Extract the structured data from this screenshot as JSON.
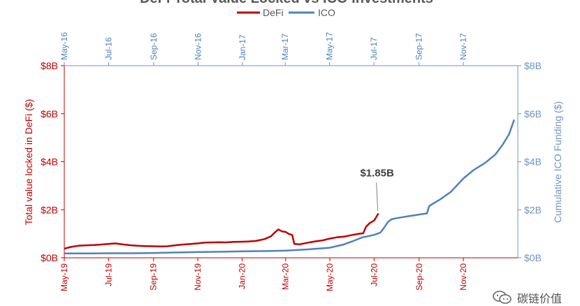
{
  "chart_data": {
    "type": "line",
    "title": "DeFi Total Value Locked vs ICO Investments",
    "legend_position": "top",
    "series": [
      {
        "name": "DeFi",
        "color": "#c00000",
        "axis": "left",
        "points": [
          [
            "2019-05-01",
            0.38
          ],
          [
            "2019-05-10",
            0.45
          ],
          [
            "2019-05-20",
            0.5
          ],
          [
            "2019-06-01",
            0.52
          ],
          [
            "2019-06-10",
            0.53
          ],
          [
            "2019-06-20",
            0.55
          ],
          [
            "2019-07-01",
            0.58
          ],
          [
            "2019-07-10",
            0.6
          ],
          [
            "2019-07-20",
            0.56
          ],
          [
            "2019-08-01",
            0.52
          ],
          [
            "2019-08-10",
            0.5
          ],
          [
            "2019-08-20",
            0.49
          ],
          [
            "2019-09-01",
            0.48
          ],
          [
            "2019-09-10",
            0.47
          ],
          [
            "2019-09-20",
            0.48
          ],
          [
            "2019-10-01",
            0.52
          ],
          [
            "2019-10-10",
            0.55
          ],
          [
            "2019-10-20",
            0.57
          ],
          [
            "2019-11-01",
            0.6
          ],
          [
            "2019-11-10",
            0.63
          ],
          [
            "2019-11-20",
            0.64
          ],
          [
            "2019-12-01",
            0.65
          ],
          [
            "2019-12-10",
            0.64
          ],
          [
            "2019-12-20",
            0.66
          ],
          [
            "2020-01-01",
            0.67
          ],
          [
            "2020-01-10",
            0.68
          ],
          [
            "2020-01-20",
            0.7
          ],
          [
            "2020-02-01",
            0.78
          ],
          [
            "2020-02-10",
            0.9
          ],
          [
            "2020-02-15",
            1.05
          ],
          [
            "2020-02-20",
            1.18
          ],
          [
            "2020-02-25",
            1.1
          ],
          [
            "2020-03-01",
            1.08
          ],
          [
            "2020-03-05",
            1.0
          ],
          [
            "2020-03-10",
            0.95
          ],
          [
            "2020-03-13",
            0.58
          ],
          [
            "2020-03-20",
            0.56
          ],
          [
            "2020-04-01",
            0.63
          ],
          [
            "2020-04-10",
            0.68
          ],
          [
            "2020-04-20",
            0.72
          ],
          [
            "2020-05-01",
            0.8
          ],
          [
            "2020-05-10",
            0.85
          ],
          [
            "2020-05-20",
            0.88
          ],
          [
            "2020-06-01",
            0.95
          ],
          [
            "2020-06-10",
            1.0
          ],
          [
            "2020-06-16",
            1.02
          ],
          [
            "2020-06-20",
            1.3
          ],
          [
            "2020-06-25",
            1.45
          ],
          [
            "2020-07-01",
            1.55
          ],
          [
            "2020-07-04",
            1.7
          ],
          [
            "2020-07-07",
            1.85
          ]
        ]
      },
      {
        "name": "ICO",
        "color": "#4f81bd",
        "axis": "right",
        "points": [
          [
            "2016-05-01",
            0.18
          ],
          [
            "2016-06-01",
            0.18
          ],
          [
            "2016-07-01",
            0.19
          ],
          [
            "2016-08-01",
            0.19
          ],
          [
            "2016-09-01",
            0.2
          ],
          [
            "2016-10-01",
            0.22
          ],
          [
            "2016-11-01",
            0.24
          ],
          [
            "2016-12-01",
            0.25
          ],
          [
            "2017-01-01",
            0.27
          ],
          [
            "2017-02-01",
            0.28
          ],
          [
            "2017-03-01",
            0.3
          ],
          [
            "2017-04-01",
            0.35
          ],
          [
            "2017-05-01",
            0.42
          ],
          [
            "2017-05-20",
            0.55
          ],
          [
            "2017-06-01",
            0.68
          ],
          [
            "2017-06-15",
            0.85
          ],
          [
            "2017-07-01",
            0.95
          ],
          [
            "2017-07-10",
            1.05
          ],
          [
            "2017-07-15",
            1.25
          ],
          [
            "2017-07-20",
            1.48
          ],
          [
            "2017-07-25",
            1.6
          ],
          [
            "2017-08-01",
            1.65
          ],
          [
            "2017-08-15",
            1.72
          ],
          [
            "2017-09-01",
            1.8
          ],
          [
            "2017-09-12",
            1.85
          ],
          [
            "2017-09-15",
            2.15
          ],
          [
            "2017-09-20",
            2.25
          ],
          [
            "2017-10-01",
            2.45
          ],
          [
            "2017-10-15",
            2.75
          ],
          [
            "2017-11-01",
            3.3
          ],
          [
            "2017-11-15",
            3.65
          ],
          [
            "2017-12-01",
            3.95
          ],
          [
            "2017-12-15",
            4.3
          ],
          [
            "2017-12-25",
            4.7
          ],
          [
            "2018-01-03",
            5.15
          ],
          [
            "2018-01-10",
            5.75
          ]
        ]
      }
    ],
    "left_axis": {
      "label": "Total value locked in DeFi ($)",
      "ylim": [
        0,
        8
      ],
      "ticks": [
        0,
        2,
        4,
        6,
        8
      ],
      "tick_labels": [
        "$0B",
        "$2B",
        "$4B",
        "$6B",
        "$8B"
      ]
    },
    "right_axis": {
      "label": "Cumulative ICO Funding ($)",
      "ylim": [
        0,
        8
      ],
      "ticks": [
        0,
        2,
        4,
        6,
        8
      ],
      "tick_labels": [
        "$0B",
        "$2B",
        "$4B",
        "$6B",
        "$8B"
      ]
    },
    "bottom_axis": {
      "xlim": [
        "2019-05-01",
        "2021-01-15"
      ],
      "ticks": [
        "2019-05-01",
        "2019-07-01",
        "2019-09-01",
        "2019-11-01",
        "2020-01-01",
        "2020-03-01",
        "2020-05-01",
        "2020-07-01",
        "2020-09-01",
        "2020-11-01"
      ],
      "tick_labels": [
        "May-19",
        "Jul-19",
        "Sep-19",
        "Nov-19",
        "Jan-20",
        "Mar-20",
        "May-20",
        "Jul-20",
        "Sep-20",
        "Nov-20"
      ]
    },
    "top_axis": {
      "xlim": [
        "2016-05-01",
        "2018-01-15"
      ],
      "ticks": [
        "2016-05-01",
        "2016-07-01",
        "2016-09-01",
        "2016-11-01",
        "2017-01-01",
        "2017-03-01",
        "2017-05-01",
        "2017-07-01",
        "2017-09-01",
        "2017-11-01"
      ],
      "tick_labels": [
        "May-16",
        "Jul-16",
        "Sep-16",
        "Nov-16",
        "Jan-17",
        "Mar-17",
        "May-17",
        "Jul-17",
        "Sep-17",
        "Nov-17"
      ]
    },
    "annotations": [
      {
        "text": "$1.85B",
        "series": "DeFi",
        "date": "2020-07-07",
        "value": 1.85
      }
    ],
    "grid": false
  },
  "watermark": {
    "text": "碳链价值",
    "icon": "wechat-icon"
  }
}
